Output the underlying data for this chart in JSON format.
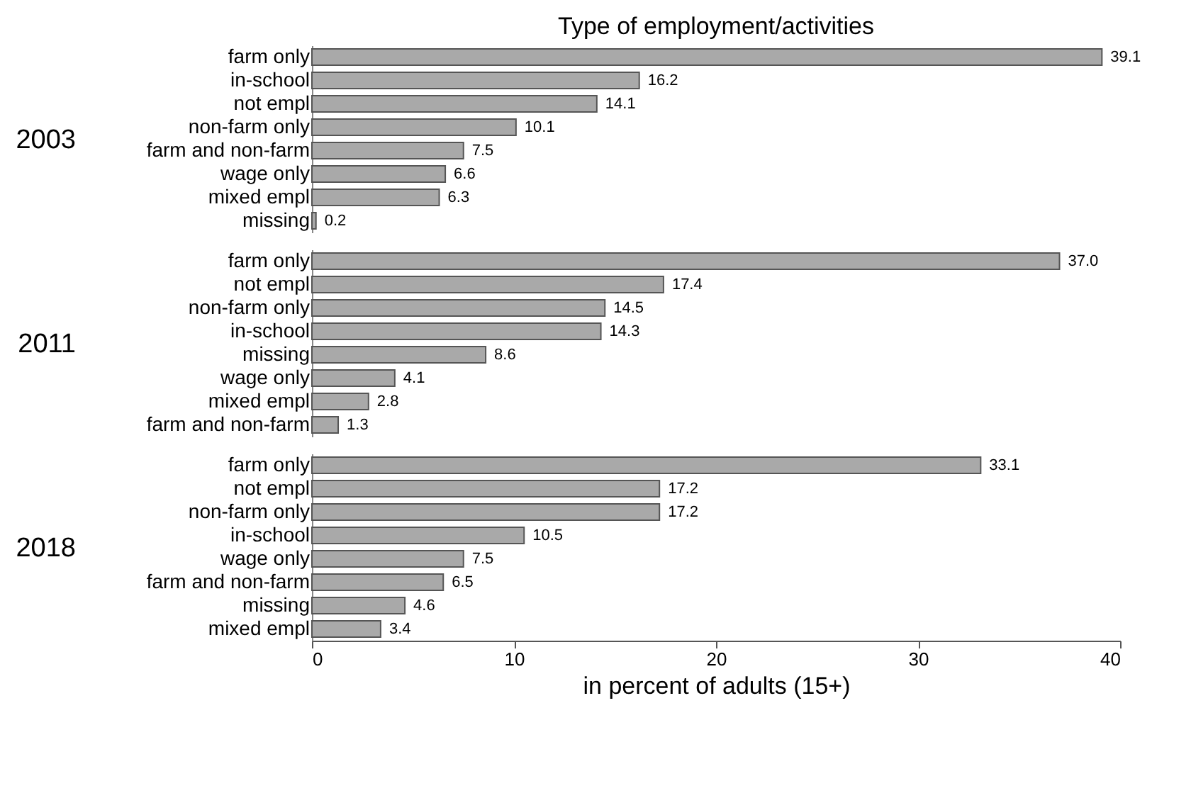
{
  "chart_data": [
    {
      "type": "bar",
      "orientation": "horizontal",
      "title": "Type of employment/activities",
      "ylabel": "2003",
      "categories": [
        "farm only",
        "in-school",
        "not empl",
        "non-farm only",
        "farm and non-farm",
        "wage only",
        "mixed empl",
        "missing"
      ],
      "values": [
        39.1,
        16.2,
        14.1,
        10.1,
        7.5,
        6.6,
        6.3,
        0.2
      ],
      "value_labels": [
        "39.1",
        "16.2",
        "14.1",
        "10.1",
        "7.5",
        "6.6",
        "6.3",
        "0.2"
      ],
      "color": "#a9a9a9",
      "xlim": [
        0,
        40
      ],
      "tick_labels": "y",
      "grid": false
    },
    {
      "type": "bar",
      "orientation": "horizontal",
      "ylabel": "2011",
      "categories": [
        "farm only",
        "not empl",
        "non-farm only",
        "in-school",
        "missing",
        "wage only",
        "mixed empl",
        "farm and non-farm"
      ],
      "values": [
        37.0,
        17.4,
        14.5,
        14.3,
        8.6,
        4.1,
        2.8,
        1.3
      ],
      "value_labels": [
        "37.0",
        "17.4",
        "14.5",
        "14.3",
        "8.6",
        "4.1",
        "2.8",
        "1.3"
      ],
      "color": "#a9a9a9",
      "xlim": [
        0,
        40
      ],
      "tick_labels": "y",
      "grid": false
    },
    {
      "type": "bar",
      "orientation": "horizontal",
      "ylabel": "2018",
      "xlabel": "in percent of adults (15+)",
      "categories": [
        "farm only",
        "not empl",
        "non-farm only",
        "in-school",
        "wage only",
        "farm and non-farm",
        "missing",
        "mixed empl"
      ],
      "values": [
        33.1,
        17.2,
        17.2,
        10.5,
        7.5,
        6.5,
        4.6,
        3.4
      ],
      "value_labels": [
        "33.1",
        "17.2",
        "17.2",
        "10.5",
        "7.5",
        "6.5",
        "4.6",
        "3.4"
      ],
      "color": "#a9a9a9",
      "xlim": [
        0,
        40
      ],
      "xticks": [
        0,
        10,
        20,
        30,
        40
      ],
      "grid": false
    }
  ]
}
